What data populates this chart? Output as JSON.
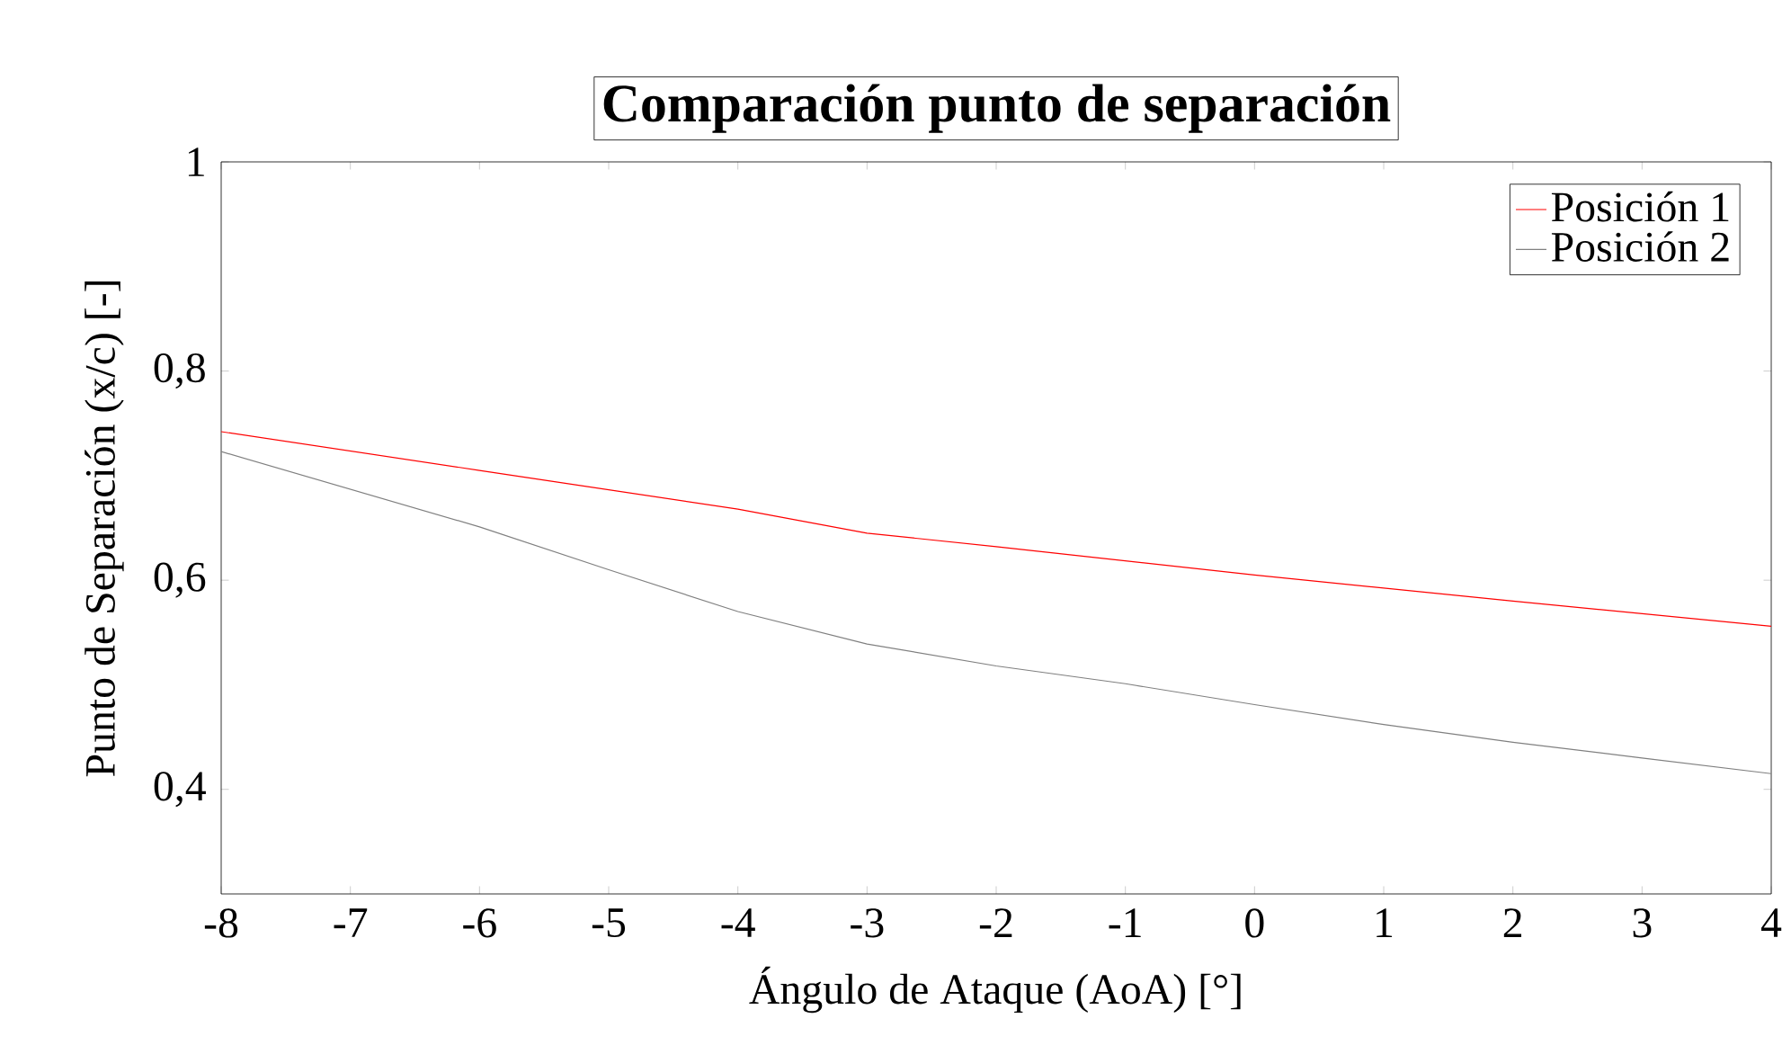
{
  "chart_data": {
    "type": "line",
    "title": "Comparación punto de separación",
    "xlabel": "Ángulo de Ataque (AoA) [°]",
    "ylabel": "Punto de Separación (x/c) [-]",
    "series": [
      {
        "name": "Posición 1",
        "color": "#ff0000",
        "x": [
          -8,
          -6,
          -4,
          -3,
          -2,
          0,
          2,
          4
        ],
        "values": [
          0.742,
          0.705,
          0.668,
          0.645,
          0.632,
          0.605,
          0.58,
          0.556
        ]
      },
      {
        "name": "Posición 2",
        "color": "#808080",
        "x": [
          -8,
          -6,
          -5,
          -4,
          -3,
          -2,
          -1,
          0,
          1,
          2,
          3,
          4
        ],
        "values": [
          0.723,
          0.651,
          0.61,
          0.57,
          0.539,
          0.518,
          0.501,
          0.481,
          0.462,
          0.445,
          0.43,
          0.415
        ]
      }
    ],
    "xlim": [
      -8,
      4
    ],
    "xticks": [
      -8,
      -7,
      -6,
      -5,
      -4,
      -3,
      -2,
      -1,
      0,
      1,
      2,
      3,
      4
    ],
    "ylim": [
      0.3,
      1
    ],
    "yticks": [
      {
        "value": 0.4,
        "label": "0,4"
      },
      {
        "value": 0.6,
        "label": "0,6"
      },
      {
        "value": 0.8,
        "label": "0,8"
      },
      1
    ],
    "grid": false,
    "legend": "top right",
    "marker": "none",
    "line_style": "solid"
  }
}
